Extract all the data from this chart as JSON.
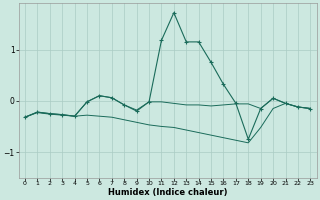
{
  "xlabel": "Humidex (Indice chaleur)",
  "bg_color": "#cce8e0",
  "grid_color": "#aaccc4",
  "line_color": "#1a6b5a",
  "xlim": [
    -0.5,
    23.5
  ],
  "ylim": [
    -1.5,
    1.9
  ],
  "yticks": [
    -1,
    0,
    1
  ],
  "xticks": [
    0,
    1,
    2,
    3,
    4,
    5,
    6,
    7,
    8,
    9,
    10,
    11,
    12,
    13,
    14,
    15,
    16,
    17,
    18,
    19,
    20,
    21,
    22,
    23
  ],
  "x": [
    0,
    1,
    2,
    3,
    4,
    5,
    6,
    7,
    8,
    9,
    10,
    11,
    12,
    13,
    14,
    15,
    16,
    17,
    18,
    19,
    20,
    21,
    22,
    23
  ],
  "curve1": [
    -0.32,
    -0.22,
    -0.25,
    -0.27,
    -0.3,
    -0.02,
    0.1,
    0.06,
    -0.08,
    -0.2,
    -0.02,
    1.18,
    1.72,
    1.15,
    1.15,
    0.75,
    0.32,
    -0.05,
    -0.75,
    -0.15,
    0.05,
    -0.05,
    -0.12,
    -0.15
  ],
  "curve2": [
    -0.32,
    -0.23,
    -0.26,
    -0.28,
    -0.3,
    -0.28,
    -0.3,
    -0.32,
    -0.37,
    -0.42,
    -0.47,
    -0.5,
    -0.52,
    -0.57,
    -0.62,
    -0.67,
    -0.72,
    -0.77,
    -0.82,
    -0.52,
    -0.15,
    -0.05,
    -0.12,
    -0.15
  ],
  "curve3": [
    -0.32,
    -0.22,
    -0.25,
    -0.27,
    -0.3,
    -0.02,
    0.1,
    0.06,
    -0.08,
    -0.18,
    -0.02,
    -0.02,
    -0.05,
    -0.08,
    -0.08,
    -0.1,
    -0.08,
    -0.06,
    -0.06,
    -0.15,
    0.05,
    -0.05,
    -0.12,
    -0.15
  ]
}
